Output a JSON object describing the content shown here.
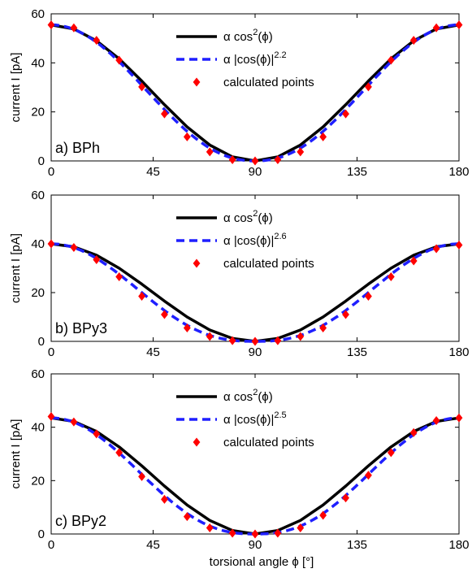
{
  "figure": {
    "xlabel": "torsional angle ϕ [°]"
  },
  "chart_data": [
    {
      "type": "line",
      "panel_label": "a) BPh",
      "ylabel": "current I [pA]",
      "xlim": [
        0,
        180
      ],
      "ylim": [
        0,
        60
      ],
      "xticks": [
        0,
        45,
        90,
        135,
        180
      ],
      "yticks": [
        0,
        20,
        40,
        60
      ],
      "legend_position": "top-right",
      "amplitude": 55.5,
      "exponent": "2.2",
      "legend": [
        {
          "prefix": "α cos",
          "sup": "2",
          "suffix": "(ϕ)",
          "style": "solid",
          "color": "#000000"
        },
        {
          "prefix": "α |cos(ϕ)|",
          "sup": "2.2",
          "suffix": "",
          "style": "dashed",
          "color": "#1f1fff"
        },
        {
          "prefix": "calculated points",
          "sup": "",
          "suffix": "",
          "style": "marker",
          "color": "#ff0000"
        }
      ],
      "points": {
        "x": [
          0,
          10,
          20,
          30,
          40,
          50,
          60,
          70,
          80,
          90,
          100,
          110,
          120,
          130,
          140,
          150,
          160,
          170,
          180
        ],
        "y": [
          55.5,
          54.3,
          49.2,
          41.1,
          30.2,
          19.2,
          9.8,
          3.7,
          0.5,
          0,
          0.5,
          3.7,
          9.8,
          19.2,
          30.2,
          41.1,
          49.2,
          54.3,
          55.5
        ]
      }
    },
    {
      "type": "line",
      "panel_label": "b) BPy3",
      "ylabel": "current I [pA]",
      "xlim": [
        0,
        180
      ],
      "ylim": [
        0,
        60
      ],
      "xticks": [
        0,
        45,
        90,
        135,
        180
      ],
      "yticks": [
        0,
        20,
        40,
        60
      ],
      "legend_position": "top-right",
      "amplitude": 40,
      "exponent": "2.6",
      "legend": [
        {
          "prefix": "α cos",
          "sup": "2",
          "suffix": "(ϕ)",
          "style": "solid",
          "color": "#000000"
        },
        {
          "prefix": "α |cos(ϕ)|",
          "sup": "2.6",
          "suffix": "",
          "style": "dashed",
          "color": "#1f1fff"
        },
        {
          "prefix": "calculated points",
          "sup": "",
          "suffix": "",
          "style": "marker",
          "color": "#ff0000"
        }
      ],
      "points": {
        "x": [
          0,
          10,
          20,
          30,
          40,
          50,
          60,
          70,
          80,
          90,
          100,
          110,
          120,
          130,
          140,
          150,
          160,
          170,
          180
        ],
        "y": [
          40,
          38.5,
          33.5,
          26.5,
          18.5,
          11,
          5.5,
          2,
          0.3,
          0,
          0.3,
          2,
          5.5,
          11,
          18.5,
          26.5,
          33,
          38,
          39.5
        ]
      }
    },
    {
      "type": "line",
      "panel_label": "c) BPy2",
      "ylabel": "current I [pA]",
      "xlim": [
        0,
        180
      ],
      "ylim": [
        0,
        60
      ],
      "xticks": [
        0,
        45,
        90,
        135,
        180
      ],
      "yticks": [
        0,
        20,
        40,
        60
      ],
      "legend_position": "top-right",
      "amplitude": 43.5,
      "exponent": "2.5",
      "legend": [
        {
          "prefix": "α cos",
          "sup": "2",
          "suffix": "(ϕ)",
          "style": "solid",
          "color": "#000000"
        },
        {
          "prefix": "α |cos(ϕ)|",
          "sup": "2.5",
          "suffix": "",
          "style": "dashed",
          "color": "#1f1fff"
        },
        {
          "prefix": "calculated points",
          "sup": "",
          "suffix": "",
          "style": "marker",
          "color": "#ff0000"
        }
      ],
      "points": {
        "x": [
          0,
          10,
          20,
          30,
          40,
          50,
          60,
          70,
          80,
          90,
          100,
          110,
          120,
          130,
          140,
          150,
          160,
          170,
          180
        ],
        "y": [
          44,
          42,
          37.5,
          30.5,
          21.5,
          13,
          6.5,
          2.3,
          0.3,
          0,
          0.3,
          2.3,
          7,
          13.5,
          22,
          30.5,
          38,
          42.5,
          43.5
        ]
      }
    }
  ]
}
